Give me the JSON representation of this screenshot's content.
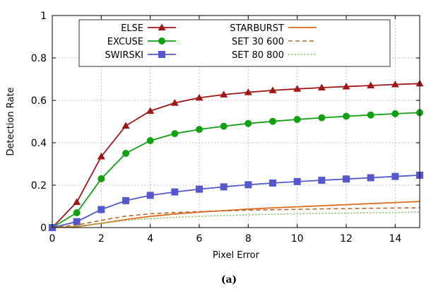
{
  "chart_data": {
    "type": "line",
    "caption": "(a)",
    "xlabel": "Pixel Error",
    "ylabel": "Detection Rate",
    "xlim": [
      0,
      15
    ],
    "ylim": [
      0,
      1
    ],
    "xticks": [
      "0",
      "2",
      "4",
      "6",
      "8",
      "10",
      "12",
      "14"
    ],
    "yticks": [
      "0",
      "0.2",
      "0.4",
      "0.6",
      "0.8",
      "1"
    ],
    "grid": true,
    "legend_position": "top",
    "series": [
      {
        "name": "ELSE",
        "color": "#a01515",
        "style": "solid",
        "marker": "triangle",
        "x": [
          0,
          1,
          2,
          3,
          4,
          5,
          6,
          7,
          8,
          9,
          10,
          11,
          12,
          13,
          14,
          15
        ],
        "values": [
          0,
          0.12,
          0.335,
          0.48,
          0.55,
          0.588,
          0.612,
          0.627,
          0.638,
          0.647,
          0.654,
          0.66,
          0.665,
          0.67,
          0.675,
          0.679
        ]
      },
      {
        "name": "EXCUSE",
        "color": "#11a011",
        "style": "solid",
        "marker": "circle",
        "x": [
          0,
          1,
          2,
          3,
          4,
          5,
          6,
          7,
          8,
          9,
          10,
          11,
          12,
          13,
          14,
          15
        ],
        "values": [
          0,
          0.07,
          0.23,
          0.35,
          0.41,
          0.443,
          0.463,
          0.478,
          0.491,
          0.501,
          0.51,
          0.518,
          0.525,
          0.531,
          0.537,
          0.542
        ]
      },
      {
        "name": "SWIRSKI",
        "color": "#5558cc",
        "style": "solid",
        "marker": "square",
        "x": [
          0,
          1,
          2,
          3,
          4,
          5,
          6,
          7,
          8,
          9,
          10,
          11,
          12,
          13,
          14,
          15
        ],
        "values": [
          0,
          0.028,
          0.085,
          0.127,
          0.152,
          0.168,
          0.181,
          0.192,
          0.202,
          0.21,
          0.217,
          0.223,
          0.229,
          0.235,
          0.241,
          0.247
        ]
      },
      {
        "name": "STARBURST",
        "color": "#e06a1a",
        "style": "solid",
        "marker": "none",
        "x": [
          0,
          1,
          2,
          3,
          4,
          5,
          6,
          7,
          8,
          9,
          10,
          11,
          12,
          13,
          14,
          15
        ],
        "values": [
          0,
          0.004,
          0.02,
          0.038,
          0.053,
          0.064,
          0.073,
          0.08,
          0.087,
          0.093,
          0.098,
          0.103,
          0.108,
          0.113,
          0.118,
          0.123
        ]
      },
      {
        "name": "SET 30 600",
        "color": "#b8692e",
        "style": "dashed",
        "marker": "none",
        "x": [
          0,
          1,
          2,
          3,
          4,
          5,
          6,
          7,
          8,
          9,
          10,
          11,
          12,
          13,
          14,
          15
        ],
        "values": [
          0,
          0.012,
          0.034,
          0.054,
          0.065,
          0.071,
          0.075,
          0.079,
          0.082,
          0.084,
          0.086,
          0.088,
          0.089,
          0.091,
          0.092,
          0.093
        ]
      },
      {
        "name": "SET 80 800",
        "color": "#7fc05a",
        "style": "dotted",
        "marker": "none",
        "x": [
          0,
          1,
          2,
          3,
          4,
          5,
          6,
          7,
          8,
          9,
          10,
          11,
          12,
          13,
          14,
          15
        ],
        "values": [
          0,
          0.006,
          0.02,
          0.033,
          0.042,
          0.048,
          0.053,
          0.057,
          0.06,
          0.063,
          0.065,
          0.067,
          0.068,
          0.07,
          0.071,
          0.073
        ]
      }
    ]
  }
}
